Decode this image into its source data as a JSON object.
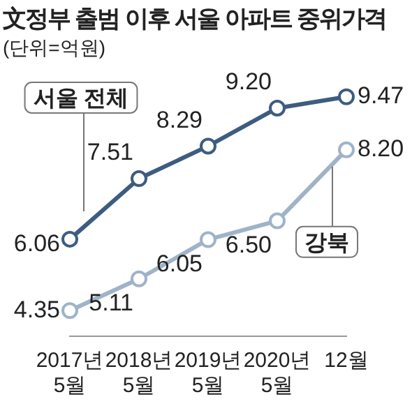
{
  "chart_data": {
    "type": "line",
    "title": "文정부 출범 이후 서울 아파트 중위가격",
    "subtitle": "(단위=억원)",
    "categories": [
      "2017년\n5월",
      "2018년\n5월",
      "2019년\n5월",
      "2020년\n5월",
      "12월"
    ],
    "series": [
      {
        "name": "서울 전체",
        "color": "#3d5c80",
        "values": [
          6.06,
          7.51,
          8.29,
          9.2,
          9.47
        ],
        "value_labels": [
          "6.06",
          "7.51",
          "8.29",
          "9.20",
          "9.47"
        ]
      },
      {
        "name": "강북",
        "color": "#9fb3c8",
        "values": [
          4.35,
          5.11,
          6.05,
          6.5,
          8.2
        ],
        "value_labels": [
          "4.35",
          "5.11",
          "6.05",
          "6.50",
          "8.20"
        ]
      }
    ],
    "marker": "circle",
    "line_style": "solid",
    "grid": false
  }
}
